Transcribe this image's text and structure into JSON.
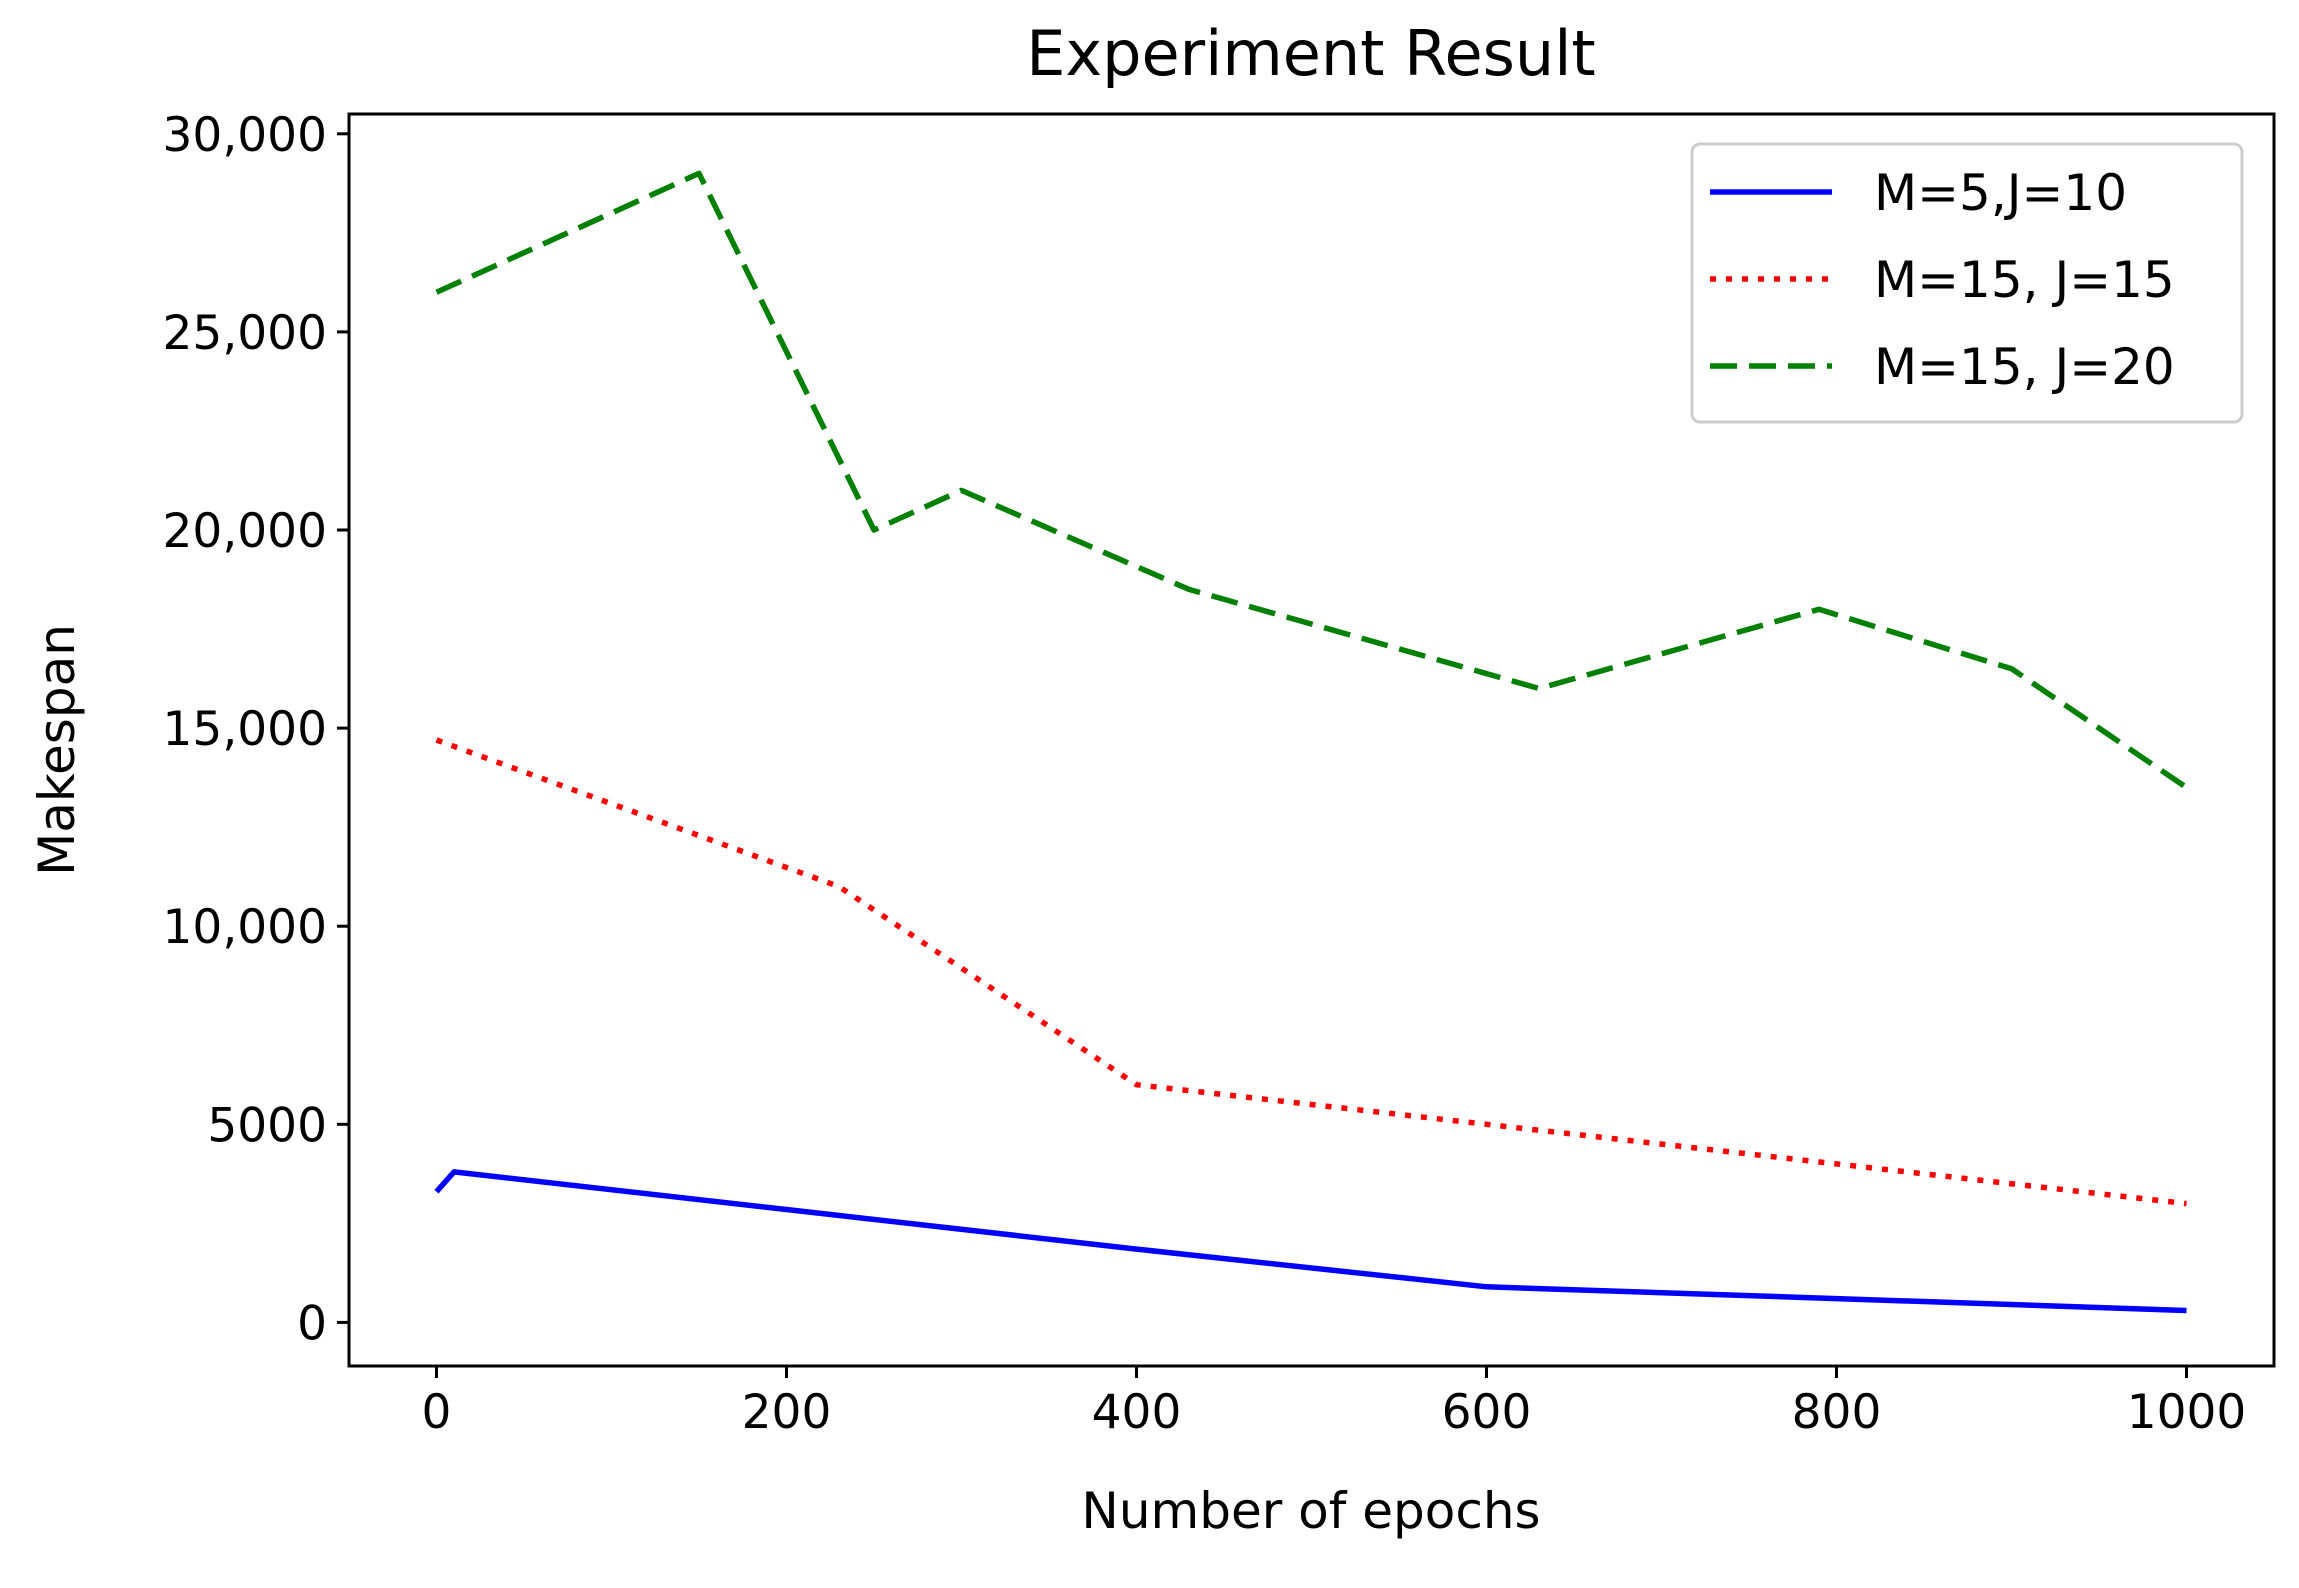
{
  "chart_data": {
    "type": "line",
    "title": "Experiment Result",
    "xlabel": "Number of epochs",
    "ylabel": "Makespan",
    "xlim": [
      -50,
      1050
    ],
    "ylim": [
      -1100,
      30500
    ],
    "xticks": [
      0,
      200,
      400,
      600,
      800,
      1000
    ],
    "xtick_labels": [
      "0",
      "200",
      "400",
      "600",
      "800",
      "1000"
    ],
    "yticks": [
      0,
      5000,
      10000,
      15000,
      20000,
      25000,
      30000
    ],
    "ytick_labels": [
      "0",
      "5000",
      "10,000",
      "15,000",
      "20,000",
      "25,000",
      "30,000"
    ],
    "grid": false,
    "legend_position": "top-right",
    "series": [
      {
        "name": "M=5,J=10",
        "color": "#0000ff",
        "style": "solid",
        "x": [
          0,
          10,
          200,
          400,
          600,
          800,
          1000
        ],
        "y": [
          3300,
          3800,
          2850,
          1850,
          900,
          600,
          300
        ]
      },
      {
        "name": "M=15, J=15",
        "color": "#ff0000",
        "style": "dotted",
        "x": [
          0,
          230,
          400,
          600,
          800,
          1000
        ],
        "y": [
          14700,
          11000,
          6000,
          5000,
          4000,
          3000
        ]
      },
      {
        "name": "M=15, J=20",
        "color": "#008000",
        "style": "dashed",
        "x": [
          0,
          150,
          250,
          300,
          430,
          630,
          790,
          900,
          1000
        ],
        "y": [
          26000,
          29000,
          20000,
          21000,
          18500,
          16000,
          18000,
          16500,
          13500
        ]
      }
    ]
  }
}
